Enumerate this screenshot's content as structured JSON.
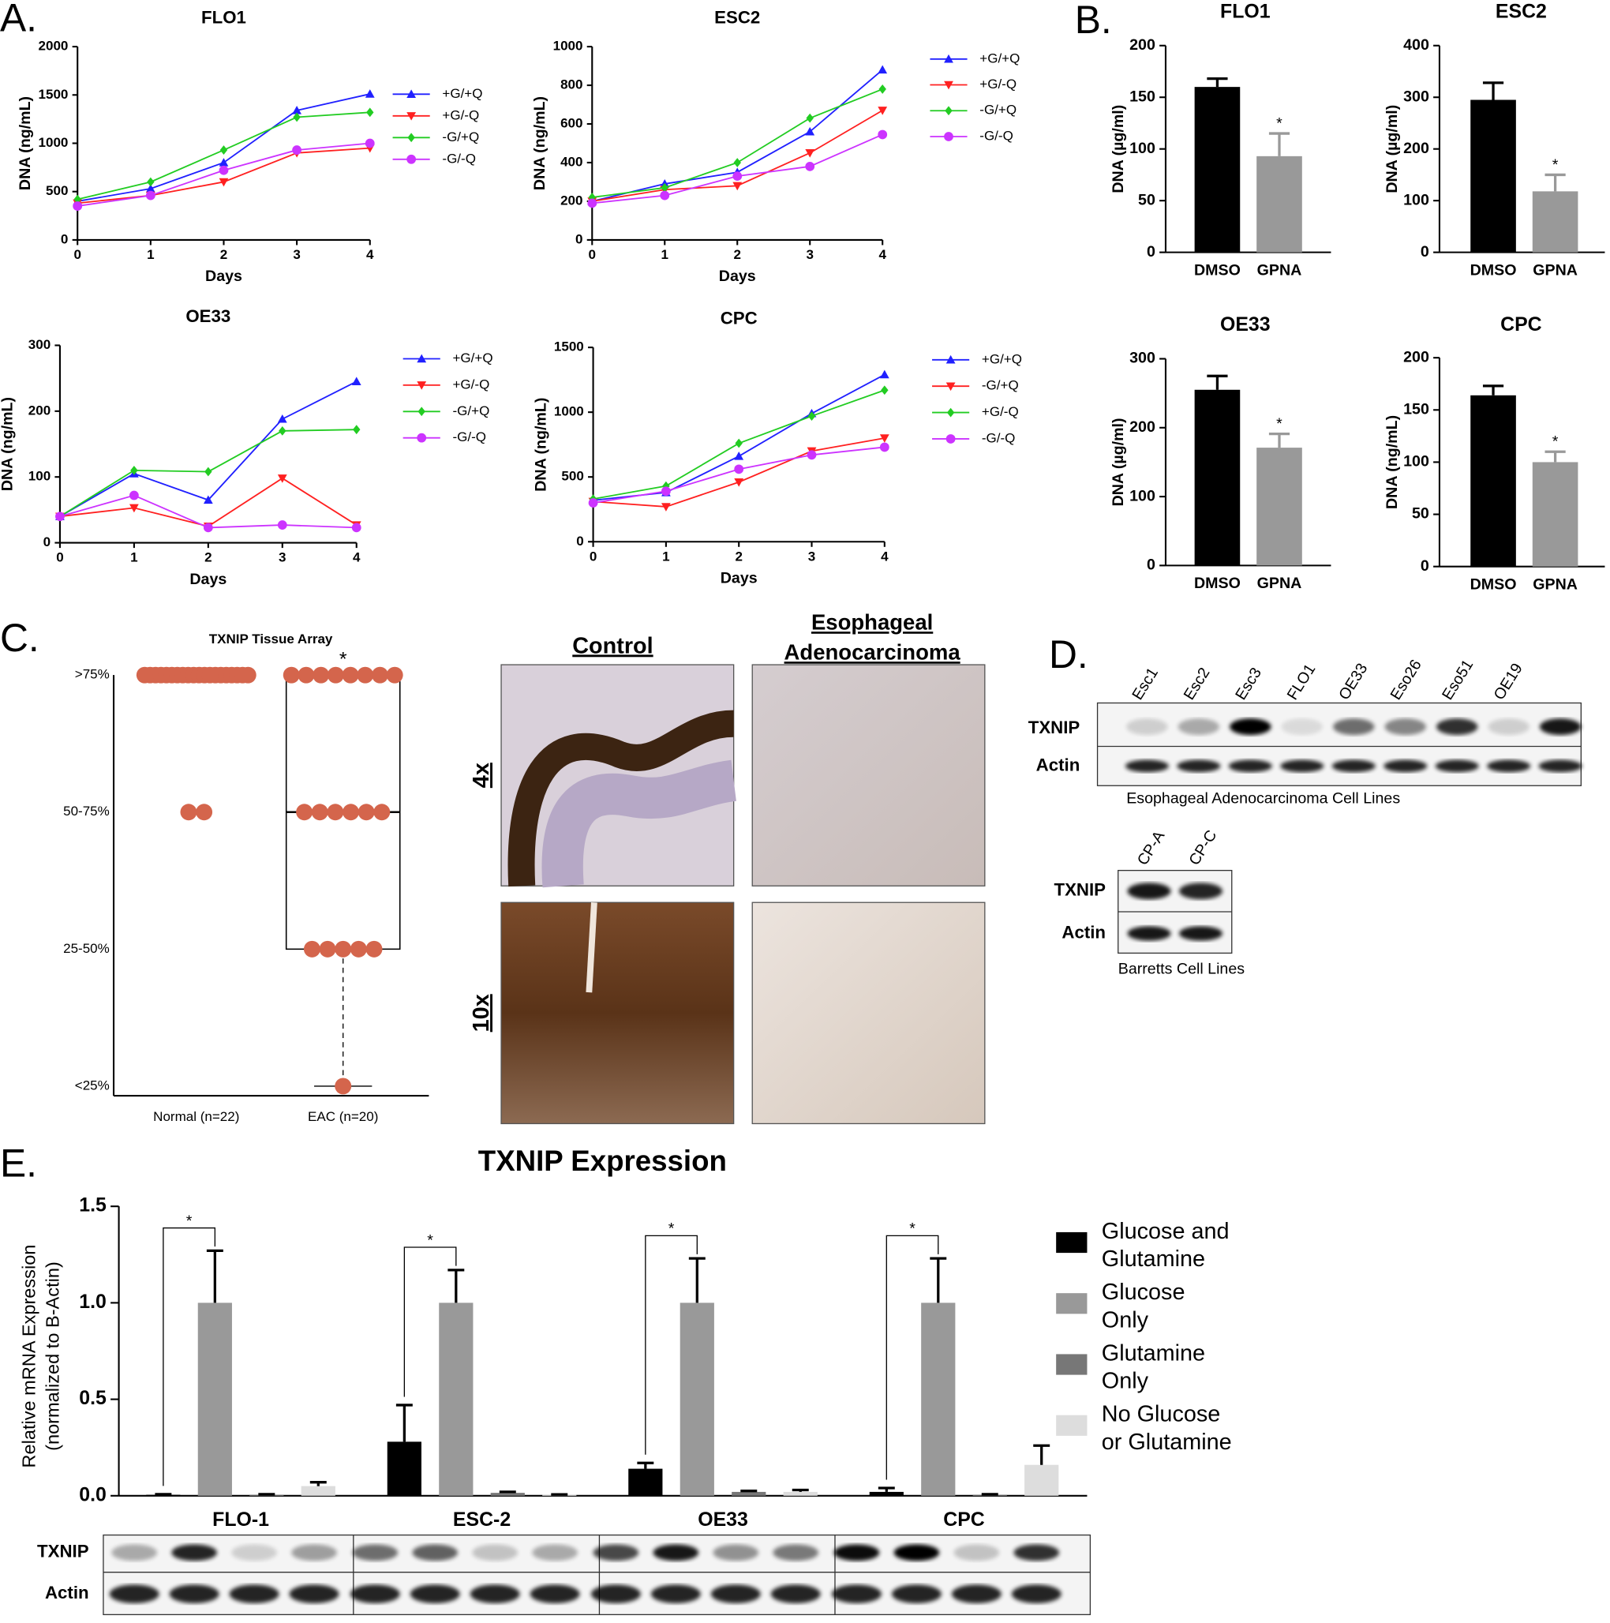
{
  "panel_labels": [
    "A.",
    "B.",
    "C.",
    "D.",
    "E."
  ],
  "histology": {
    "columns": [
      "Control",
      "Esophageal Adenocarcinoma"
    ],
    "rows": [
      "4x",
      "10x"
    ]
  },
  "blots": [
    {
      "lanes": [
        "Esc1",
        "Esc2",
        "Esc3",
        "FLO1",
        "OE33",
        "Eso26",
        "Eso51",
        "OE19"
      ],
      "rows": [
        "TXNIP",
        "Actin"
      ],
      "caption": "Esophageal Adenocarcinoma Cell Lines"
    },
    {
      "lanes": [
        "CP-A",
        "CP-C"
      ],
      "rows": [
        "TXNIP",
        "Actin"
      ],
      "caption": "Barretts Cell Lines"
    },
    {
      "rows": [
        "TXNIP",
        "Actin"
      ]
    }
  ],
  "chart_data": [
    {
      "type": "line",
      "title": "FLO1",
      "xlabel": "Days",
      "ylabel": "DNA  (ng/mL)",
      "x": [
        0,
        1,
        2,
        3,
        4
      ],
      "xlim": [
        0,
        4
      ],
      "xticks": [
        0,
        1,
        2,
        3,
        4
      ],
      "ylim": [
        0,
        2000
      ],
      "yticks": [
        0,
        500,
        1000,
        1500,
        2000
      ],
      "series": [
        {
          "name": "+G/+Q",
          "color": "#2020ff",
          "marker": "triangle-up",
          "values": [
            400,
            530,
            800,
            1340,
            1510
          ]
        },
        {
          "name": "+G/-Q",
          "color": "#ff2020",
          "marker": "triangle-down",
          "values": [
            380,
            460,
            600,
            900,
            950
          ]
        },
        {
          "name": "-G/+Q",
          "color": "#22cc22",
          "marker": "diamond",
          "values": [
            420,
            600,
            930,
            1270,
            1320
          ]
        },
        {
          "name": "-G/-Q",
          "color": "#cc33ff",
          "marker": "circle",
          "values": [
            350,
            460,
            720,
            930,
            1000
          ]
        }
      ]
    },
    {
      "type": "line",
      "title": "ESC2",
      "xlabel": "Days",
      "ylabel": "DNA  (ng/mL)",
      "x": [
        0,
        1,
        2,
        3,
        4
      ],
      "xlim": [
        0,
        4
      ],
      "xticks": [
        0,
        1,
        2,
        3,
        4
      ],
      "ylim": [
        0,
        1000
      ],
      "yticks": [
        0,
        200,
        400,
        600,
        800,
        1000
      ],
      "series": [
        {
          "name": "+G/+Q",
          "color": "#2020ff",
          "marker": "triangle-up",
          "values": [
            200,
            290,
            350,
            560,
            880
          ]
        },
        {
          "name": "+G/-Q",
          "color": "#ff2020",
          "marker": "triangle-down",
          "values": [
            200,
            260,
            280,
            450,
            670
          ]
        },
        {
          "name": "-G/+Q",
          "color": "#22cc22",
          "marker": "diamond",
          "values": [
            220,
            270,
            400,
            630,
            780
          ]
        },
        {
          "name": "-G/-Q",
          "color": "#cc33ff",
          "marker": "circle",
          "values": [
            190,
            230,
            330,
            380,
            545
          ]
        }
      ]
    },
    {
      "type": "line",
      "title": "OE33",
      "xlabel": "Days",
      "ylabel": "DNA  (ng/mL)",
      "x": [
        0,
        1,
        2,
        3,
        4
      ],
      "xlim": [
        0,
        4
      ],
      "xticks": [
        0,
        1,
        2,
        3,
        4
      ],
      "ylim": [
        0,
        300
      ],
      "yticks": [
        0,
        100,
        200,
        300
      ],
      "series": [
        {
          "name": "+G/+Q",
          "color": "#2020ff",
          "marker": "triangle-up",
          "values": [
            40,
            105,
            65,
            188,
            245
          ]
        },
        {
          "name": "+G/-Q",
          "color": "#ff2020",
          "marker": "triangle-down",
          "values": [
            40,
            53,
            25,
            98,
            27
          ]
        },
        {
          "name": "-G/+Q",
          "color": "#22cc22",
          "marker": "diamond",
          "values": [
            40,
            110,
            108,
            170,
            172
          ]
        },
        {
          "name": "-G/-Q",
          "color": "#cc33ff",
          "marker": "circle",
          "values": [
            40,
            72,
            23,
            27,
            23
          ]
        }
      ]
    },
    {
      "type": "line",
      "title": "CPC",
      "xlabel": "Days",
      "ylabel": "DNA  (ng/mL)",
      "x": [
        0,
        1,
        2,
        3,
        4
      ],
      "xlim": [
        0,
        4
      ],
      "xticks": [
        0,
        1,
        2,
        3,
        4
      ],
      "ylim": [
        0,
        1500
      ],
      "yticks": [
        0,
        500,
        1000,
        1500
      ],
      "series": [
        {
          "name": "+G/+Q",
          "color": "#2020ff",
          "marker": "triangle-up",
          "values": [
            320,
            380,
            660,
            990,
            1290
          ]
        },
        {
          "name": "-G/+Q",
          "color": "#ff2020",
          "marker": "triangle-down",
          "values": [
            310,
            270,
            460,
            700,
            800
          ]
        },
        {
          "name": "+G/-Q",
          "color": "#22cc22",
          "marker": "diamond",
          "values": [
            330,
            430,
            760,
            970,
            1170
          ]
        },
        {
          "name": "-G/-Q",
          "color": "#cc33ff",
          "marker": "circle",
          "values": [
            300,
            390,
            560,
            670,
            730
          ]
        }
      ]
    },
    {
      "type": "bar",
      "title": "FLO1",
      "ylabel": "DNA (µg/ml)",
      "categories": [
        "DMSO",
        "GPNA"
      ],
      "values": [
        160,
        93
      ],
      "errors": [
        8,
        22
      ],
      "colors": [
        "#000000",
        "#999999"
      ],
      "annotation": "*",
      "ylim": [
        0,
        200
      ],
      "yticks": [
        0,
        50,
        100,
        150,
        200
      ]
    },
    {
      "type": "bar",
      "title": "ESC2",
      "ylabel": "DNA (µg/ml)",
      "categories": [
        "DMSO",
        "GPNA"
      ],
      "values": [
        295,
        118
      ],
      "errors": [
        33,
        32
      ],
      "colors": [
        "#000000",
        "#999999"
      ],
      "annotation": "*",
      "ylim": [
        0,
        400
      ],
      "yticks": [
        0,
        100,
        200,
        300,
        400
      ]
    },
    {
      "type": "bar",
      "title": "OE33",
      "ylabel": "DNA (µg/ml)",
      "categories": [
        "DMSO",
        "GPNA"
      ],
      "values": [
        255,
        171
      ],
      "errors": [
        20,
        20
      ],
      "colors": [
        "#000000",
        "#999999"
      ],
      "annotation": "*",
      "ylim": [
        0,
        300
      ],
      "yticks": [
        0,
        100,
        200,
        300
      ]
    },
    {
      "type": "bar",
      "title": "CPC",
      "ylabel": "DNA (ng/mL)",
      "categories": [
        "DMSO",
        "GPNA"
      ],
      "values": [
        164,
        100
      ],
      "errors": [
        9,
        10
      ],
      "colors": [
        "#000000",
        "#999999"
      ],
      "annotation": "*",
      "ylim": [
        0,
        200
      ],
      "yticks": [
        0,
        50,
        100,
        150,
        200
      ]
    },
    {
      "type": "dot",
      "title": "TXNIP Tissue Array",
      "categories": [
        "Normal (n=22)",
        "EAC (n=20)"
      ],
      "color": "#d4654c",
      "yticks": [
        {
          "value": 1,
          "label": "<25%"
        },
        {
          "value": 2,
          "label": "25-50%"
        },
        {
          "value": 3,
          "label": "50-75%"
        },
        {
          "value": 4,
          "label": ">75%"
        }
      ],
      "ylim": [
        0.93,
        4
      ],
      "counts": [
        [
          0,
          0,
          2,
          20
        ],
        [
          1,
          5,
          6,
          8
        ]
      ],
      "boxes": [
        null,
        {
          "low": 1,
          "q1": 2,
          "median": 3,
          "q3": 4
        }
      ],
      "annotation": "*"
    },
    {
      "type": "bar",
      "title": "TXNIP Expression",
      "ylabel": "Relative mRNA Expression (normalized to B-Actin)",
      "categories": [
        "FLO-1",
        "ESC-2",
        "OE33",
        "CPC"
      ],
      "ylim": [
        0,
        1.5
      ],
      "yticks": [
        {
          "value": 0,
          "label": "0.0"
        },
        0.5,
        {
          "value": 1,
          "label": "1.0"
        },
        1.5
      ],
      "series": [
        {
          "name": "Glucose and Glutamine",
          "color": "#000000",
          "values": [
            0.005,
            0.28,
            0.14,
            0.02
          ],
          "errors": [
            0.003,
            0.19,
            0.03,
            0.02
          ]
        },
        {
          "name": "Glucose Only",
          "color": "#999999",
          "values": [
            1,
            1,
            1,
            1
          ],
          "errors": [
            0.27,
            0.17,
            0.23,
            0.23
          ]
        },
        {
          "name": "Glutamine Only",
          "color": "#777777",
          "values": [
            0.005,
            0.015,
            0.02,
            0.005
          ],
          "errors": [
            0.003,
            0.005,
            0.005,
            0.003
          ]
        },
        {
          "name": "No Glucose or Glutamine",
          "color": "#dddddd",
          "values": [
            0.05,
            0.005,
            0.02,
            0.16
          ],
          "errors": [
            0.02,
            0.002,
            0.01,
            0.1
          ]
        }
      ],
      "significance_labels": [
        "*",
        "*",
        "*",
        "*"
      ]
    }
  ]
}
